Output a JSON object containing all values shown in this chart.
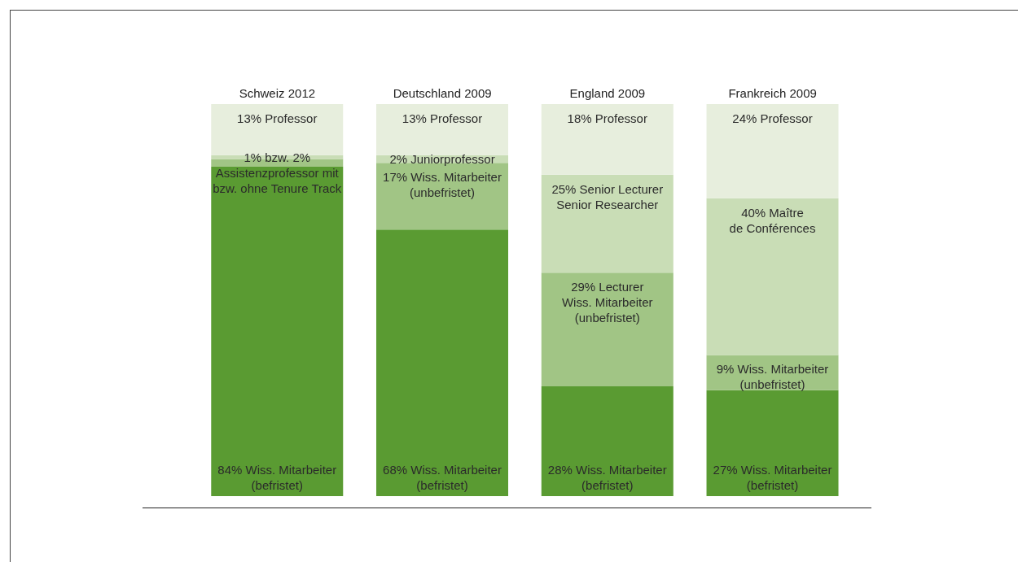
{
  "chart_data": {
    "type": "bar",
    "stacked": true,
    "categories": [
      "Schweiz 2012",
      "Deutschland 2009",
      "England 2009",
      "Frankreich 2009"
    ],
    "series": [
      {
        "color": "#5a9b32",
        "values": [
          84,
          68,
          28,
          27
        ],
        "value_labels": [
          "84% Wiss. Mitarbeiter\n(befristet)",
          "68% Wiss. Mitarbeiter\n(befristet)",
          "28% Wiss. Mitarbeiter\n(befristet)",
          "27% Wiss. Mitarbeiter\n(befristet)"
        ]
      },
      {
        "color": "#a1c585",
        "values": [
          2,
          17,
          29,
          9
        ],
        "value_labels": [
          null,
          "17% Wiss. Mitarbeiter\n(unbefristet)",
          "29% Lecturer\nWiss. Mitarbeiter\n(unbefristet)",
          "9% Wiss. Mitarbeiter\n(unbefristet)"
        ]
      },
      {
        "color": "#c9ddb6",
        "values": [
          1,
          2,
          25,
          40
        ],
        "value_labels": [
          "1% bzw. 2%\nAssistenzprofessor mit\nbzw. ohne Tenure Track",
          "2% Juniorprofessor",
          "25% Senior Lecturer\nSenior Researcher",
          "40% Maître\nde Conférences"
        ]
      },
      {
        "color": "#e7eedd",
        "values": [
          13,
          13,
          18,
          24
        ],
        "value_labels": [
          "13% Professor",
          "13% Professor",
          "18% Professor",
          "24% Professor"
        ]
      }
    ],
    "grid": false,
    "legend": false
  }
}
